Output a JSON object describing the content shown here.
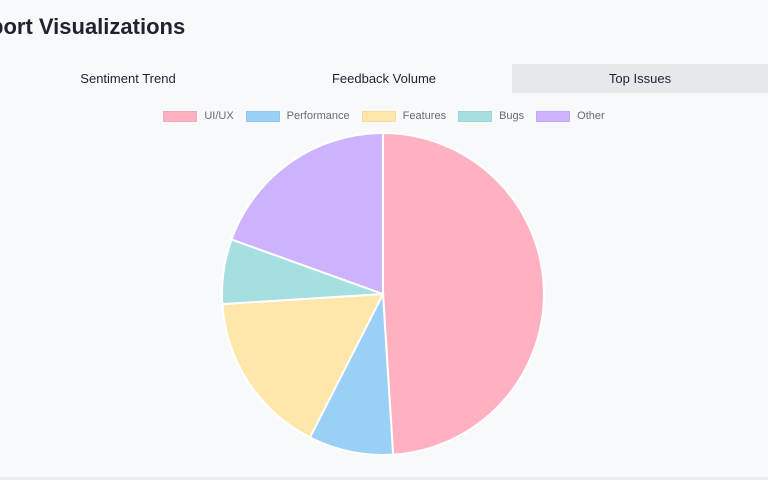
{
  "header": {
    "title": "port Visualizations"
  },
  "tabs": [
    {
      "label": "Sentiment Trend",
      "active": false
    },
    {
      "label": "Feedback Volume",
      "active": false
    },
    {
      "label": "Top Issues",
      "active": true
    }
  ],
  "chart_data": {
    "type": "pie",
    "title": "",
    "legend_position": "top",
    "categories": [
      "UI/UX",
      "Performance",
      "Features",
      "Bugs",
      "Other"
    ],
    "values": [
      49,
      8.5,
      16.5,
      6.5,
      19.5
    ],
    "colors": [
      "#ffb1c1",
      "#9ad0f5",
      "#ffe6aa",
      "#a5dfdf",
      "#ccb2ff"
    ]
  }
}
